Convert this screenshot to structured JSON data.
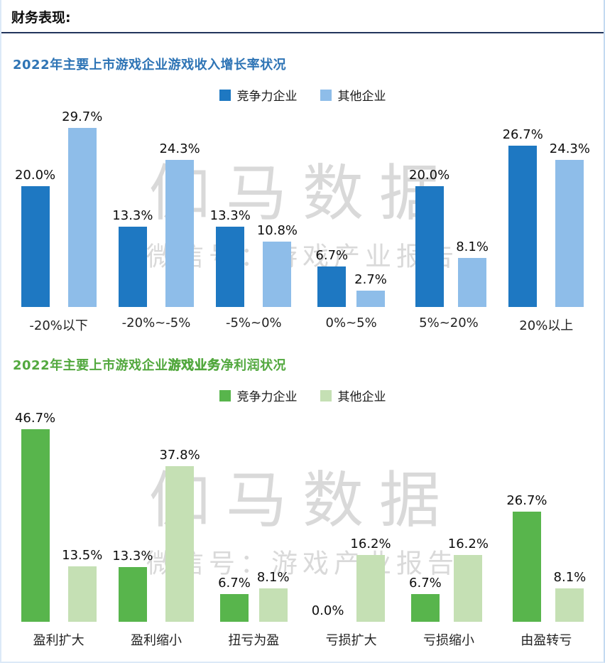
{
  "page": {
    "header": "财务表现:",
    "divider_color": "#22355c",
    "watermark": {
      "line1": "伽马数据",
      "line2": "微信号：游戏产业报告"
    }
  },
  "chart_data": [
    {
      "type": "bar",
      "title_parts": [
        {
          "text": "2022年主要上市游戏企业游戏收入增长率状况",
          "bold": false
        }
      ],
      "title_color": "#2e74b5",
      "legend_position": "top-center",
      "grid": false,
      "xlabel": "",
      "ylabel": "",
      "ylim": [
        0,
        32
      ],
      "categories": [
        "-20%以下",
        "-20%~-5%",
        "-5%~0%",
        "0%~5%",
        "5%~20%",
        "20%以上"
      ],
      "series": [
        {
          "name": "竞争力企业",
          "color": "#1e78c2",
          "values": [
            20.0,
            13.3,
            13.3,
            6.7,
            20.0,
            26.7
          ],
          "labels": [
            "20.0%",
            "13.3%",
            "13.3%",
            "6.7%",
            "20.0%",
            "26.7%"
          ]
        },
        {
          "name": "其他企业",
          "color": "#8ebde9",
          "values": [
            29.7,
            24.3,
            10.8,
            2.7,
            8.1,
            24.3
          ],
          "labels": [
            "29.7%",
            "24.3%",
            "10.8%",
            "2.7%",
            "8.1%",
            "24.3%"
          ]
        }
      ]
    },
    {
      "type": "bar",
      "title_parts": [
        {
          "text": "2022年主要上市游戏企业",
          "bold": false
        },
        {
          "text": "游戏业务",
          "bold": true
        },
        {
          "text": "净利润状况",
          "bold": false
        }
      ],
      "title_color": "#52a83e",
      "legend_position": "top-center",
      "grid": false,
      "xlabel": "",
      "ylabel": "",
      "ylim": [
        0,
        50
      ],
      "categories": [
        "盈利扩大",
        "盈利缩小",
        "扭亏为盈",
        "亏损扩大",
        "亏损缩小",
        "由盈转亏"
      ],
      "series": [
        {
          "name": "竞争力企业",
          "color": "#58b54c",
          "values": [
            46.7,
            13.3,
            6.7,
            0.0,
            6.7,
            26.7
          ],
          "labels": [
            "46.7%",
            "13.3%",
            "6.7%",
            "0.0%",
            "6.7%",
            "26.7%"
          ]
        },
        {
          "name": "其他企业",
          "color": "#c5e0b4",
          "values": [
            13.5,
            37.8,
            8.1,
            16.2,
            16.2,
            8.1
          ],
          "labels": [
            "13.5%",
            "37.8%",
            "8.1%",
            "16.2%",
            "16.2%",
            "8.1%"
          ]
        }
      ]
    }
  ]
}
